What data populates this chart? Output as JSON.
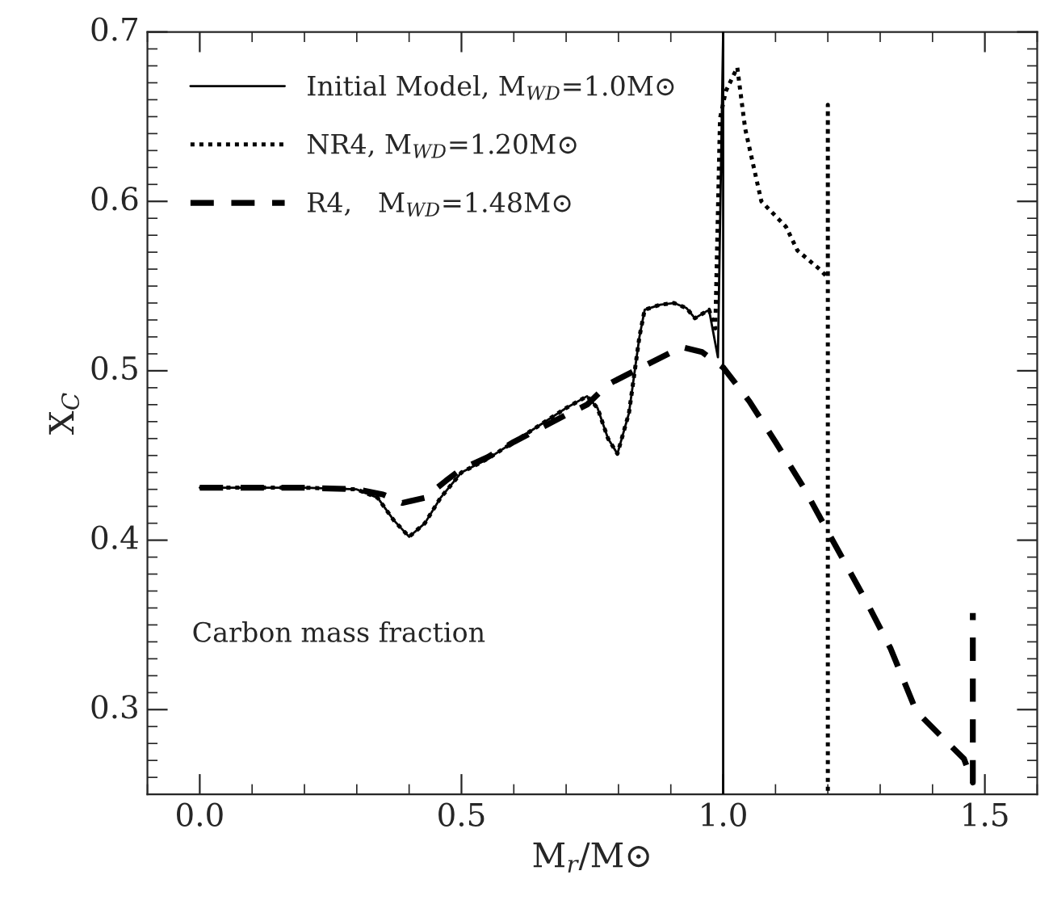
{
  "chart_data": {
    "type": "line",
    "xlabel": "M$_{r}$/M⊙",
    "ylabel": "X$_{C}$",
    "xlim": [
      -0.1,
      1.6
    ],
    "xticks": [
      {
        "value": 0.0,
        "label": "0.0"
      },
      0.5,
      {
        "value": 1.0,
        "label": "1.0"
      },
      1.5
    ],
    "ylim": [
      0.25,
      0.7
    ],
    "yticks": [
      0.3,
      0.4,
      0.5,
      0.6,
      0.7
    ],
    "legend": "top left",
    "grid": false,
    "annotations": [
      "Carbon mass fraction"
    ],
    "series": [
      {
        "name": "Initial Model, M$_{WD}$=1.0M⊙",
        "color": "#000000",
        "line_style": "solid",
        "x": [
          0.0,
          0.1,
          0.2,
          0.3,
          0.34,
          0.37,
          0.4,
          0.43,
          0.46,
          0.5,
          0.55,
          0.6,
          0.65,
          0.7,
          0.74,
          0.76,
          0.78,
          0.798,
          0.82,
          0.84,
          0.85,
          0.88,
          0.906,
          0.93,
          0.946,
          0.973,
          0.99,
          1.0,
          1.0
        ],
        "values": [
          0.431,
          0.431,
          0.431,
          0.43,
          0.425,
          0.412,
          0.402,
          0.41,
          0.425,
          0.44,
          0.448,
          0.458,
          0.468,
          0.478,
          0.485,
          0.478,
          0.46,
          0.451,
          0.475,
          0.52,
          0.536,
          0.539,
          0.54,
          0.537,
          0.531,
          0.536,
          0.508,
          0.7,
          0.25
        ]
      },
      {
        "name": "NR4, M$_{WD}$=1.20M⊙",
        "color": "#000000",
        "line_style": "dotted",
        "x": [
          0.0,
          0.1,
          0.2,
          0.3,
          0.34,
          0.37,
          0.4,
          0.43,
          0.46,
          0.5,
          0.55,
          0.6,
          0.65,
          0.7,
          0.74,
          0.76,
          0.78,
          0.798,
          0.82,
          0.84,
          0.85,
          0.88,
          0.906,
          0.93,
          0.946,
          0.973,
          0.985,
          0.994,
          1.005,
          1.027,
          1.042,
          1.073,
          1.12,
          1.142,
          1.184,
          1.2,
          1.2,
          1.2
        ],
        "values": [
          0.431,
          0.431,
          0.431,
          0.43,
          0.425,
          0.412,
          0.402,
          0.41,
          0.425,
          0.44,
          0.448,
          0.458,
          0.468,
          0.478,
          0.485,
          0.478,
          0.46,
          0.451,
          0.475,
          0.52,
          0.536,
          0.539,
          0.54,
          0.537,
          0.531,
          0.536,
          0.525,
          0.649,
          0.665,
          0.679,
          0.643,
          0.6,
          0.585,
          0.571,
          0.56,
          0.555,
          0.657,
          0.25
        ]
      },
      {
        "name": "R4,   M$_{WD}$=1.48M⊙",
        "color": "#000000",
        "line_style": "dashed",
        "x": [
          0.0,
          0.1,
          0.2,
          0.3,
          0.35,
          0.387,
          0.43,
          0.47,
          0.5,
          0.55,
          0.6,
          0.65,
          0.7,
          0.74,
          0.78,
          0.85,
          0.921,
          0.96,
          1.0,
          1.05,
          1.1,
          1.154,
          1.2,
          1.275,
          1.32,
          1.369,
          1.414,
          1.46,
          1.477,
          1.477
        ],
        "values": [
          0.431,
          0.431,
          0.431,
          0.43,
          0.427,
          0.422,
          0.425,
          0.435,
          0.442,
          0.449,
          0.458,
          0.466,
          0.474,
          0.48,
          0.492,
          0.503,
          0.514,
          0.511,
          0.502,
          0.482,
          0.458,
          0.431,
          0.405,
          0.363,
          0.336,
          0.299,
          0.285,
          0.271,
          0.257,
          0.357
        ]
      }
    ]
  }
}
